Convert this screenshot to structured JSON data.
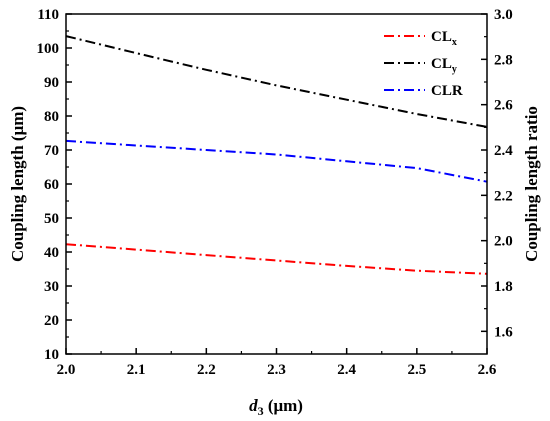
{
  "chart_data": {
    "type": "line",
    "xlabel": {
      "main": "d",
      "sub": "3",
      "unit": " (μm)"
    },
    "ylabel_left": "Coupling length (μm)",
    "ylabel_right": "Coupling length ratio",
    "xlim": [
      2.0,
      2.6
    ],
    "ylim_left": [
      10,
      110
    ],
    "ylim_right": [
      1.5,
      3.0
    ],
    "x_ticks": [
      "2.0",
      "2.1",
      "2.2",
      "2.3",
      "2.4",
      "2.5",
      "2.6"
    ],
    "y_left_ticks": [
      "10",
      "20",
      "30",
      "40",
      "50",
      "60",
      "70",
      "80",
      "90",
      "100",
      "110"
    ],
    "y_right_ticks": [
      "1.6",
      "1.8",
      "2.0",
      "2.2",
      "2.4",
      "2.6",
      "2.8",
      "3.0"
    ],
    "grid": false,
    "legend_position": "top-right",
    "series": [
      {
        "name": "CL",
        "name_sub": "x",
        "axis": "left",
        "color": "#ff0000",
        "x": [
          2.0,
          2.1,
          2.2,
          2.3,
          2.4,
          2.5,
          2.6
        ],
        "y": [
          42.3,
          40.7,
          39.1,
          37.5,
          35.9,
          34.5,
          33.6
        ]
      },
      {
        "name": "CL",
        "name_sub": "y",
        "axis": "left",
        "color": "#000000",
        "x": [
          2.0,
          2.1,
          2.2,
          2.3,
          2.4,
          2.5,
          2.6
        ],
        "y": [
          103.5,
          98.5,
          93.6,
          89.0,
          84.8,
          80.6,
          76.8
        ]
      },
      {
        "name": "CLR",
        "name_sub": "",
        "axis": "right",
        "color": "#0000ff",
        "x": [
          2.0,
          2.1,
          2.2,
          2.3,
          2.4,
          2.5,
          2.6
        ],
        "y": [
          2.44,
          2.42,
          2.4,
          2.38,
          2.35,
          2.32,
          2.26
        ]
      }
    ]
  }
}
